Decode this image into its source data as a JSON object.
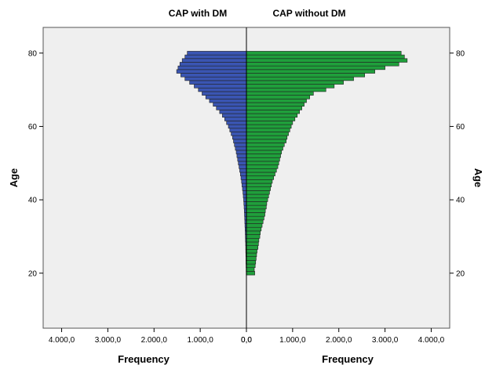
{
  "chart_data": {
    "type": "bar",
    "orientation": "horizontal",
    "subtype": "population-pyramid",
    "panels": [
      {
        "name": "CAP with DM",
        "side": "left",
        "color": "#3a55b2"
      },
      {
        "name": "CAP without DM",
        "side": "right",
        "color": "#1f9f3b"
      }
    ],
    "ylabel": "Age",
    "xlabel_left": "Frequency",
    "xlabel_right": "Frequency",
    "xlim": [
      0,
      4400
    ],
    "ylim": [
      5,
      87
    ],
    "x_ticks": [
      4000,
      3000,
      2000,
      1000,
      0
    ],
    "x_tick_labels_left": [
      "4.000,0",
      "3.000,0",
      "2.000,0",
      "1.000,0",
      "0,0"
    ],
    "x_tick_labels_right": [
      "0,0",
      "1.000,0",
      "2.000,0",
      "3.000,0",
      "4.000,0"
    ],
    "y_ticks": [
      20,
      40,
      60,
      80
    ],
    "y_tick_labels": [
      "20",
      "40",
      "60",
      "80"
    ],
    "grid": false,
    "legend": "none",
    "ages": [
      20,
      21,
      22,
      23,
      24,
      25,
      26,
      27,
      28,
      29,
      30,
      31,
      32,
      33,
      34,
      35,
      36,
      37,
      38,
      39,
      40,
      41,
      42,
      43,
      44,
      45,
      46,
      47,
      48,
      49,
      50,
      51,
      52,
      53,
      54,
      55,
      56,
      57,
      58,
      59,
      60,
      61,
      62,
      63,
      64,
      65,
      66,
      67,
      68,
      69,
      70,
      71,
      72,
      73,
      74,
      75,
      76,
      77,
      78,
      79,
      80
    ],
    "series": [
      {
        "name": "CAP with DM",
        "values": [
          5,
          6,
          8,
          10,
          10,
          12,
          14,
          15,
          17,
          20,
          22,
          25,
          28,
          32,
          35,
          38,
          42,
          45,
          50,
          55,
          60,
          68,
          75,
          85,
          95,
          105,
          118,
          130,
          145,
          160,
          175,
          190,
          205,
          220,
          240,
          260,
          280,
          300,
          330,
          360,
          390,
          430,
          470,
          520,
          580,
          650,
          720,
          800,
          880,
          960,
          1040,
          1130,
          1230,
          1330,
          1420,
          1510,
          1480,
          1440,
          1390,
          1330,
          1280
        ]
      },
      {
        "name": "CAP without DM",
        "values": [
          180,
          170,
          190,
          200,
          210,
          220,
          230,
          250,
          260,
          270,
          290,
          300,
          320,
          340,
          360,
          380,
          400,
          410,
          430,
          440,
          460,
          480,
          500,
          520,
          540,
          560,
          590,
          620,
          650,
          680,
          700,
          720,
          740,
          760,
          790,
          820,
          860,
          880,
          910,
          940,
          970,
          1000,
          1050,
          1100,
          1150,
          1200,
          1250,
          1300,
          1370,
          1450,
          1720,
          1900,
          2100,
          2320,
          2560,
          2780,
          3000,
          3300,
          3480,
          3420,
          3350
        ]
      }
    ]
  }
}
